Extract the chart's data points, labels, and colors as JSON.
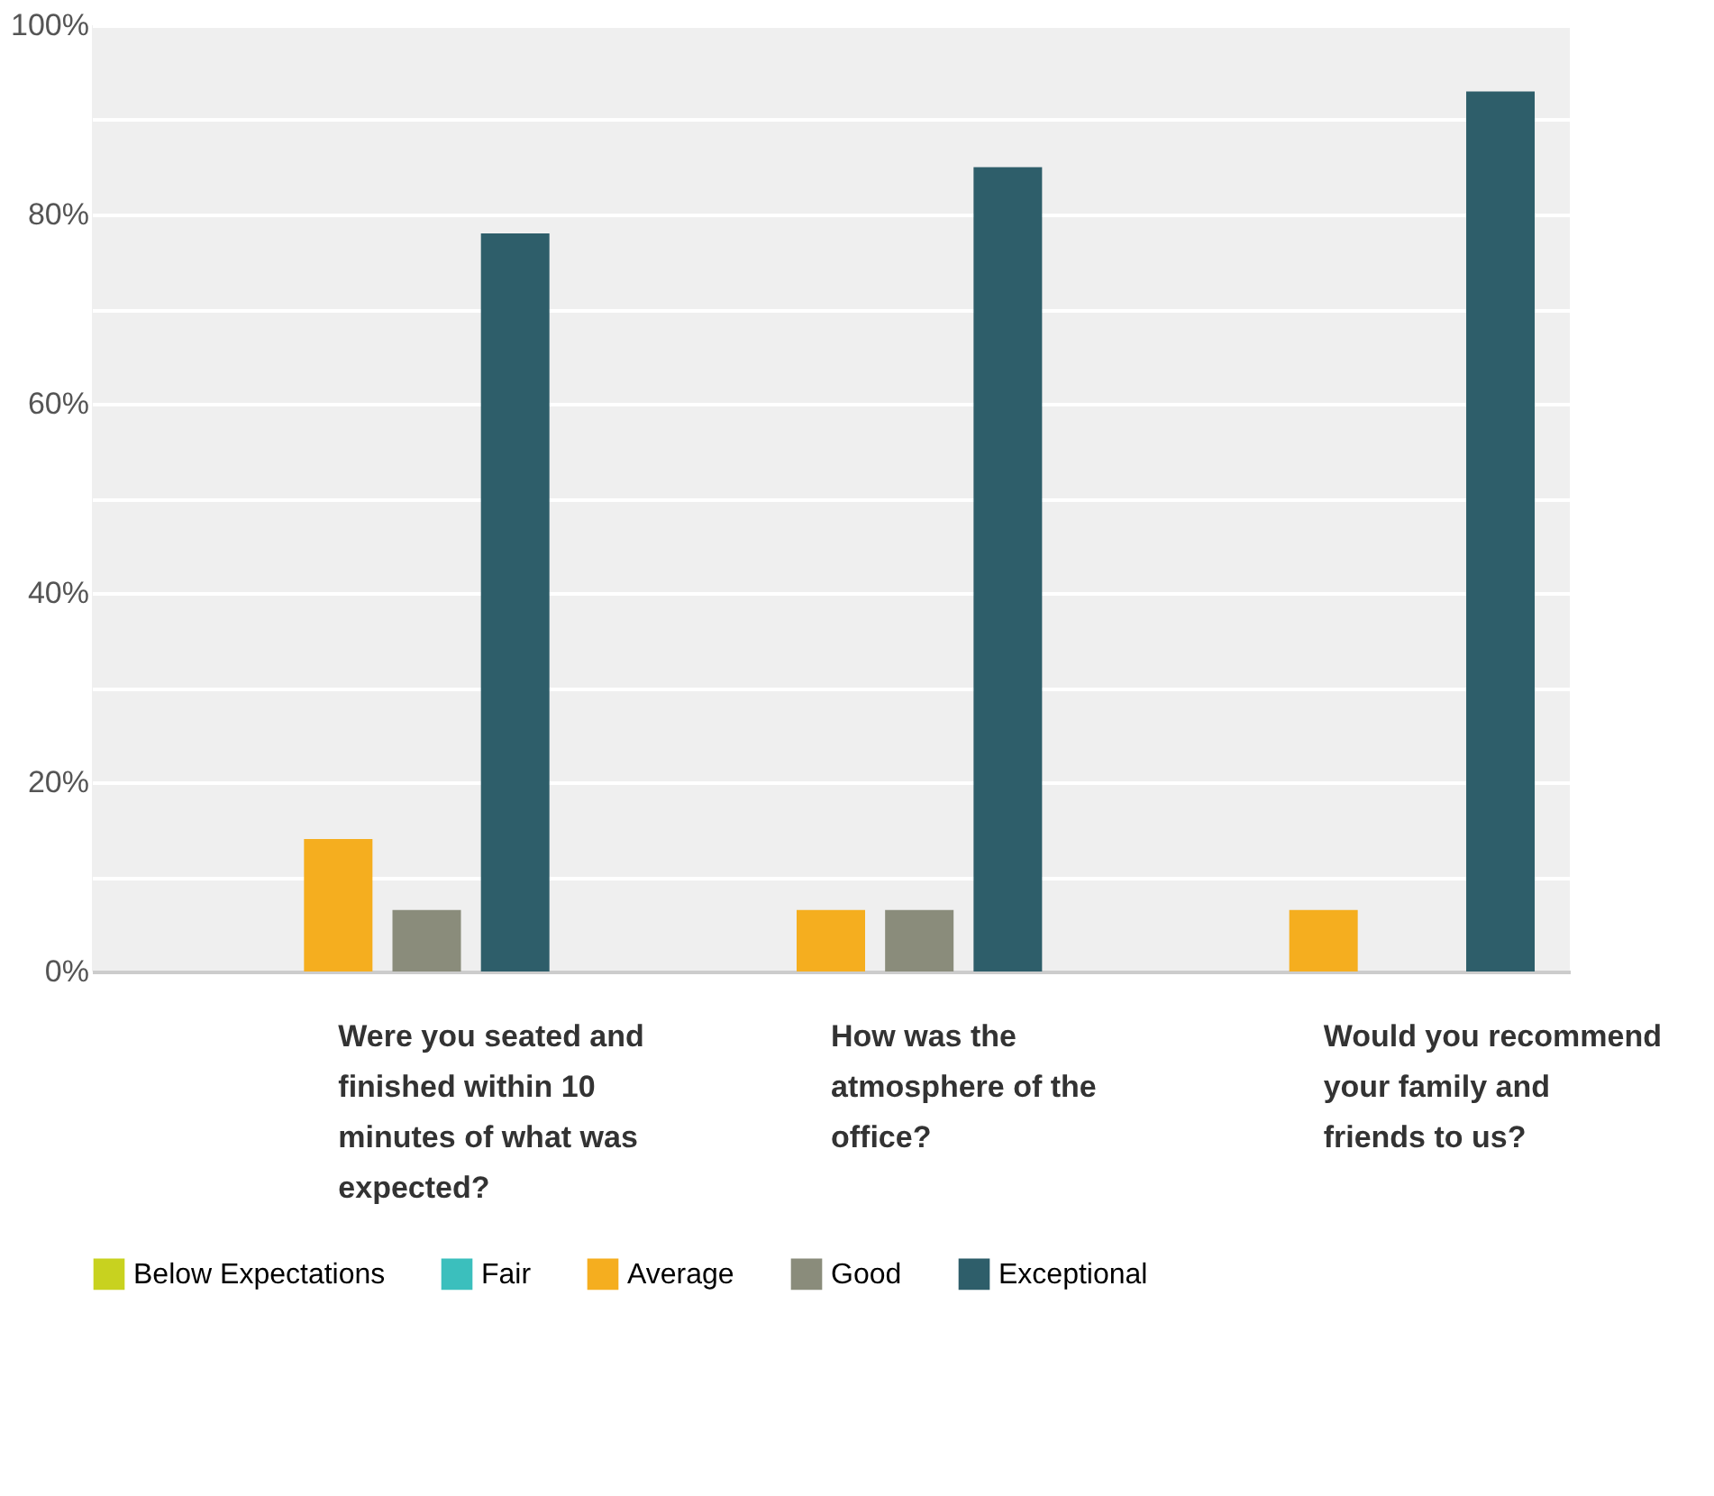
{
  "chart_data": {
    "type": "bar",
    "categories": [
      "Were you seated and finished within 10 minutes of what was expected?",
      "How was the atmosphere of the office?",
      "Would you recommend your family and friends to us?"
    ],
    "series": [
      {
        "name": "Below Expectations",
        "color": "#c8d21f",
        "values": [
          0,
          0,
          0
        ]
      },
      {
        "name": "Fair",
        "color": "#3bbfbd",
        "values": [
          0,
          0,
          0
        ]
      },
      {
        "name": "Average",
        "color": "#f5ae1f",
        "values": [
          14,
          6.5,
          6.5
        ]
      },
      {
        "name": "Good",
        "color": "#8a8c7b",
        "values": [
          6.5,
          6.5,
          0
        ]
      },
      {
        "name": "Exceptional",
        "color": "#2e5e6a",
        "values": [
          78,
          85,
          93
        ]
      }
    ],
    "ylim": [
      0,
      100
    ],
    "yticks": [
      {
        "value": 0,
        "label": "0%"
      },
      {
        "value": 10,
        "label": null
      },
      {
        "value": 20,
        "label": "20%"
      },
      {
        "value": 30,
        "label": null
      },
      {
        "value": 40,
        "label": "40%"
      },
      {
        "value": 50,
        "label": null
      },
      {
        "value": 60,
        "label": "60%"
      },
      {
        "value": 70,
        "label": null
      },
      {
        "value": 80,
        "label": "80%"
      },
      {
        "value": 90,
        "label": null
      },
      {
        "value": 100,
        "label": "100%"
      }
    ],
    "grid": "y",
    "legend": "bottom"
  }
}
